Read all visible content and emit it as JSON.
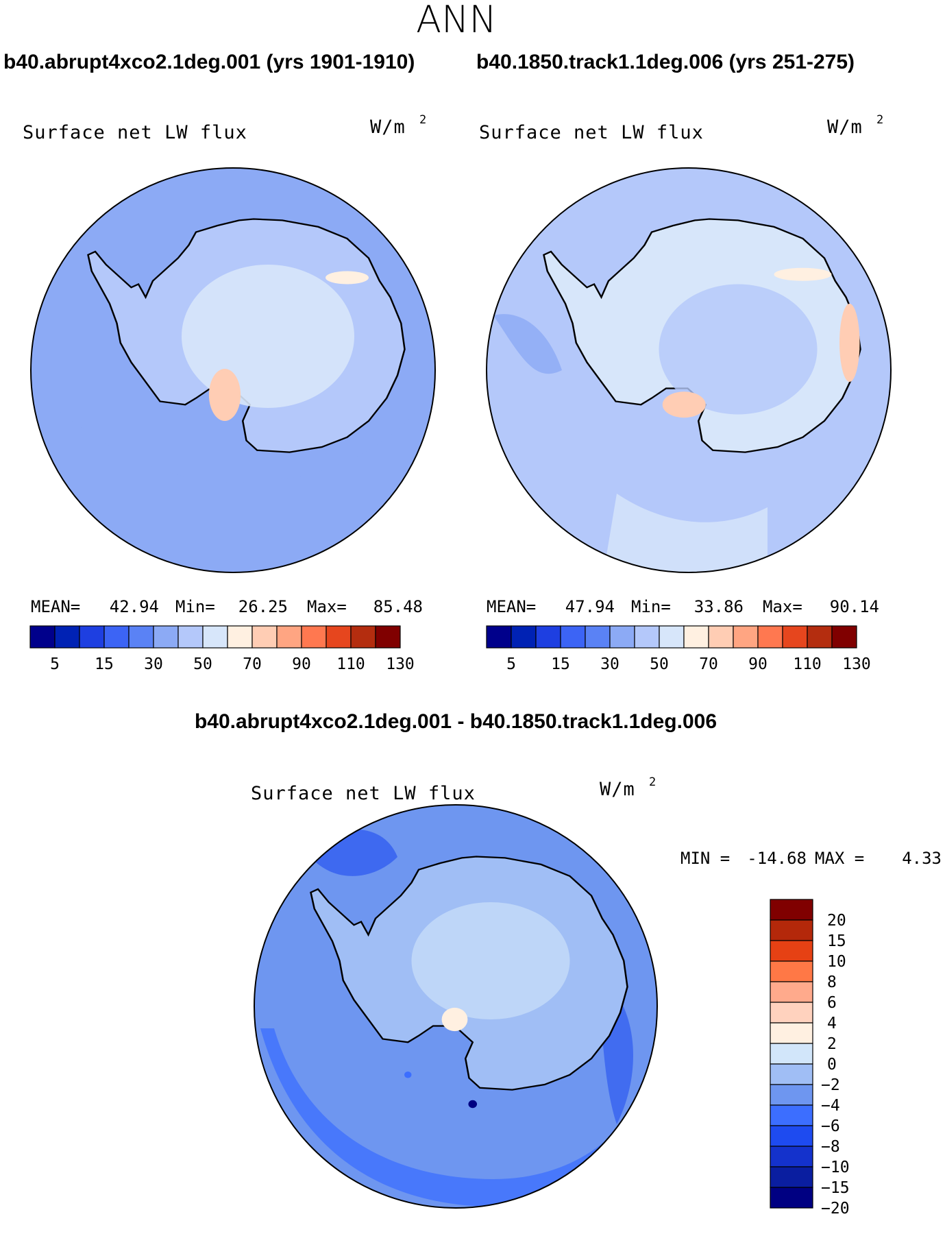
{
  "page": {
    "title": "ANN",
    "panel_a_header": "b40.abrupt4xco2.1deg.001 (yrs 1901-1910)",
    "panel_b_header": "b40.1850.track1.1deg.006 (yrs 251-275)",
    "diff_header": "b40.abrupt4xco2.1deg.001 - b40.1850.track1.1deg.006"
  },
  "colors": {
    "land_outline": "#000000",
    "abs_scale": [
      "#00008b",
      "#0022b4",
      "#1e3fe1",
      "#3c64f5",
      "#5a82f5",
      "#8caaf5",
      "#b4c8fa",
      "#d7e6fa",
      "#fff0e1",
      "#ffcdb4",
      "#ffa582",
      "#ff7850",
      "#e6461e",
      "#b42d0f",
      "#800000"
    ],
    "diff_scale": [
      "#000082",
      "#0a1ea0",
      "#1432cc",
      "#1e4bf0",
      "#3c6eff",
      "#6e96f0",
      "#a0bef5",
      "#d2e6fa",
      "#fff0e1",
      "#ffd2be",
      "#ffaa8c",
      "#ff7846",
      "#e64114",
      "#b4280a",
      "#800000"
    ]
  },
  "chart_data": [
    {
      "type": "heatmap",
      "projection": "south-polar stereographic",
      "title": "Surface net LW flux",
      "units": "W/m",
      "units_sup": "2",
      "stats": {
        "mean_label": "MEAN=",
        "mean": "42.94",
        "min_label": "Min=",
        "min": "26.25",
        "max_label": "Max=",
        "max": "85.48"
      },
      "colorbar": {
        "orientation": "horizontal",
        "levels": [
          5,
          10,
          15,
          20,
          30,
          40,
          50,
          60,
          70,
          80,
          90,
          100,
          110,
          120,
          130
        ],
        "tick_labels": [
          "5",
          "15",
          "30",
          "50",
          "70",
          "90",
          "110",
          "130"
        ]
      },
      "dominant_fill": 5
    },
    {
      "type": "heatmap",
      "projection": "south-polar stereographic",
      "title": "Surface net LW flux",
      "units": "W/m",
      "units_sup": "2",
      "stats": {
        "mean_label": "MEAN=",
        "mean": "47.94",
        "min_label": "Min=",
        "min": "33.86",
        "max_label": "Max=",
        "max": "90.14"
      },
      "colorbar": {
        "orientation": "horizontal",
        "levels": [
          5,
          10,
          15,
          20,
          30,
          40,
          50,
          60,
          70,
          80,
          90,
          100,
          110,
          120,
          130
        ],
        "tick_labels": [
          "5",
          "15",
          "30",
          "50",
          "70",
          "90",
          "110",
          "130"
        ]
      },
      "dominant_fill": 6
    },
    {
      "type": "heatmap",
      "projection": "south-polar stereographic",
      "title": "Surface net LW flux",
      "units": "W/m",
      "units_sup": "2",
      "stats": {
        "min_label": "MIN =",
        "min": "-14.68",
        "max_label": "MAX =",
        "max": "4.33"
      },
      "colorbar": {
        "orientation": "vertical",
        "levels": [
          "20",
          "15",
          "10",
          "8",
          "6",
          "4",
          "2",
          "0",
          "−2",
          "−4",
          "−6",
          "−8",
          "−10",
          "−15",
          "−20"
        ]
      },
      "dominant_fill": 5
    }
  ]
}
